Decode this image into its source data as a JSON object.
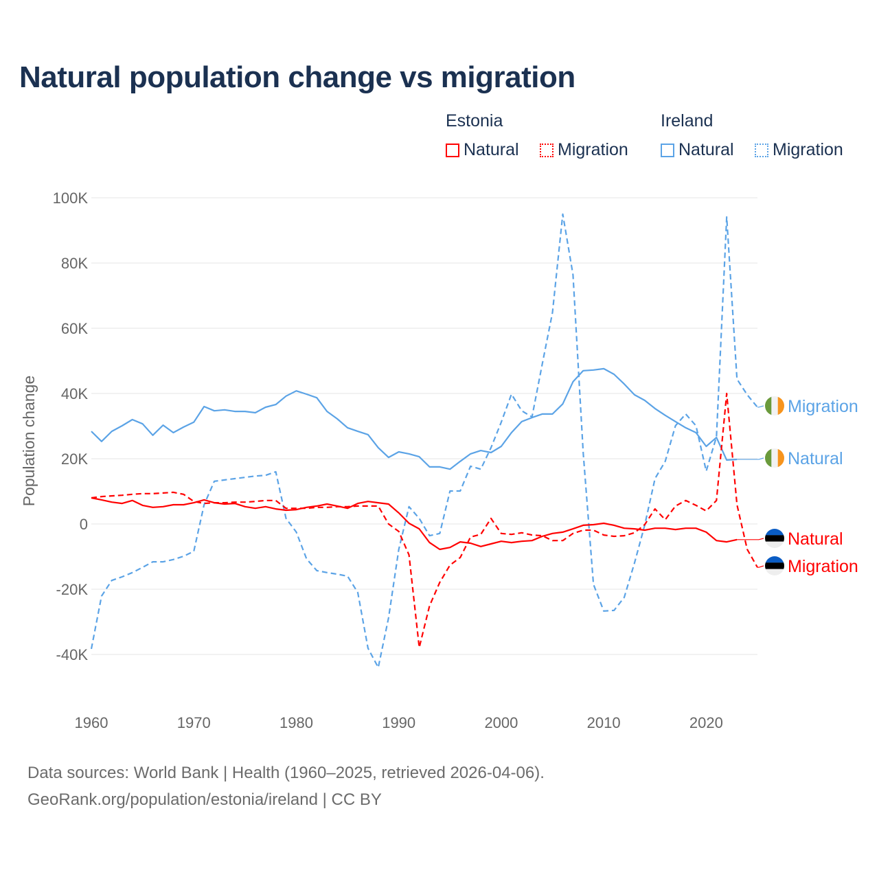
{
  "title": "Natural population change vs migration",
  "legend": {
    "groups": [
      {
        "name": "Estonia",
        "items": [
          {
            "label": "Natural",
            "style": "solid"
          },
          {
            "label": "Migration",
            "style": "dashed"
          }
        ],
        "color": "#ff0000"
      },
      {
        "name": "Ireland",
        "items": [
          {
            "label": "Natural",
            "style": "solid"
          },
          {
            "label": "Migration",
            "style": "dashed"
          }
        ],
        "color": "#5ba3e6"
      }
    ]
  },
  "footer": {
    "line1": "Data sources: World Bank | Health (1960–2025, retrieved 2026-04-06).",
    "line2": "GeoRank.org/population/estonia/ireland | CC BY"
  },
  "chart_data": {
    "type": "line",
    "title": "Natural population change vs migration",
    "xlabel": "",
    "ylabel": "Population change",
    "xlim": [
      1960,
      2025
    ],
    "ylim": [
      -50000,
      100000
    ],
    "x_ticks": [
      1960,
      1970,
      1980,
      1990,
      2000,
      2010,
      2020
    ],
    "x_tick_labels": [
      "1960",
      "1970",
      "1980",
      "1990",
      "2000",
      "2010",
      "2020"
    ],
    "y_ticks": [
      -40000,
      -20000,
      0,
      20000,
      40000,
      60000,
      80000,
      100000
    ],
    "y_tick_labels": [
      "-40K",
      "-20K",
      "0",
      "20K",
      "40K",
      "60K",
      "80K",
      "100K"
    ],
    "grid": true,
    "legend_position": "top-right",
    "start_year": 1960,
    "series": [
      {
        "name": "Ireland Migration",
        "country": "Ireland",
        "kind": "Migration",
        "end_label": "Migration",
        "flag": "ireland-flag-icon",
        "color": "#5ba3e6",
        "dashed": true,
        "values_k": [
          -38.3,
          -22.1,
          -17.3,
          -16.2,
          -14.9,
          -13.3,
          -11.6,
          -11.6,
          -10.9,
          -9.9,
          -8.4,
          5.9,
          13.1,
          13.5,
          13.9,
          14.3,
          14.7,
          14.9,
          16.0,
          1.7,
          -2.5,
          -10.7,
          -14.3,
          -14.9,
          -15.4,
          -16.0,
          -21.0,
          -38.1,
          -44.0,
          -28.8,
          -7.8,
          5.3,
          1.7,
          -3.6,
          -2.9,
          10.1,
          10.1,
          17.7,
          16.8,
          23.4,
          31.2,
          39.8,
          34.7,
          32.8,
          49.0,
          64.8,
          95.0,
          76.4,
          21.7,
          -18.5,
          -26.7,
          -26.5,
          -22.5,
          -12.0,
          -0.4,
          13.9,
          19.2,
          30.1,
          33.7,
          30.1,
          16.2,
          26.7,
          94.1,
          44.4,
          39.6,
          35.8
        ]
      },
      {
        "name": "Ireland Natural",
        "country": "Ireland",
        "kind": "Natural",
        "end_label": "Natural",
        "flag": "ireland-flag-icon",
        "color": "#5ba3e6",
        "dashed": false,
        "values_k": [
          28.4,
          25.3,
          28.4,
          30.1,
          32.0,
          30.7,
          27.2,
          30.3,
          28.0,
          29.7,
          31.2,
          36.0,
          34.7,
          35.0,
          34.5,
          34.5,
          34.1,
          35.8,
          36.6,
          39.2,
          40.8,
          39.8,
          38.7,
          34.5,
          32.2,
          29.5,
          28.4,
          27.4,
          23.4,
          20.4,
          22.1,
          21.5,
          20.6,
          17.5,
          17.5,
          16.8,
          19.2,
          21.5,
          22.5,
          21.9,
          23.8,
          28.0,
          31.4,
          32.6,
          33.7,
          33.7,
          36.8,
          43.6,
          47.0,
          47.2,
          47.6,
          45.9,
          42.9,
          39.6,
          37.9,
          35.4,
          33.3,
          31.4,
          29.5,
          28.0,
          23.8,
          26.5,
          19.6,
          19.8
        ]
      },
      {
        "name": "Estonia Natural",
        "country": "Estonia",
        "kind": "Natural",
        "end_label": "Natural",
        "flag": "estonia-flag-icon",
        "color": "#ff0000",
        "dashed": false,
        "values_k": [
          8.0,
          7.4,
          6.7,
          6.3,
          7.2,
          5.7,
          5.1,
          5.3,
          5.9,
          5.9,
          6.5,
          7.4,
          6.5,
          6.1,
          6.3,
          5.3,
          4.8,
          5.3,
          4.6,
          4.2,
          4.4,
          5.1,
          5.5,
          6.1,
          5.5,
          4.8,
          6.3,
          6.9,
          6.5,
          6.1,
          3.4,
          0.2,
          -1.5,
          -5.7,
          -7.8,
          -7.2,
          -5.5,
          -5.9,
          -6.9,
          -6.1,
          -5.3,
          -5.7,
          -5.3,
          -5.1,
          -3.8,
          -2.9,
          -2.5,
          -1.5,
          -0.4,
          -0.2,
          0.2,
          -0.4,
          -1.3,
          -1.5,
          -1.9,
          -1.3,
          -1.3,
          -1.7,
          -1.3,
          -1.3,
          -2.5,
          -5.1,
          -5.5,
          -4.8
        ]
      },
      {
        "name": "Estonia Migration",
        "country": "Estonia",
        "kind": "Migration",
        "end_label": "Migration",
        "flag": "estonia-flag-icon",
        "color": "#ff0000",
        "dashed": true,
        "values_k": [
          8.0,
          8.4,
          8.6,
          8.8,
          9.1,
          9.3,
          9.3,
          9.5,
          9.7,
          9.1,
          6.9,
          6.3,
          6.5,
          6.5,
          6.7,
          6.7,
          6.9,
          7.2,
          7.2,
          4.8,
          4.8,
          4.8,
          5.1,
          5.1,
          5.3,
          5.3,
          5.5,
          5.5,
          5.5,
          0.0,
          -2.3,
          -9.5,
          -37.9,
          -25.1,
          -17.9,
          -12.6,
          -10.3,
          -4.0,
          -3.2,
          1.7,
          -2.9,
          -3.2,
          -2.7,
          -3.4,
          -3.6,
          -5.1,
          -5.1,
          -2.9,
          -1.9,
          -1.9,
          -3.4,
          -3.8,
          -3.6,
          -2.7,
          -0.2,
          4.6,
          1.3,
          5.5,
          7.2,
          5.7,
          4.0,
          7.2,
          40.0,
          5.9,
          -7.8,
          -13.3
        ]
      }
    ]
  }
}
